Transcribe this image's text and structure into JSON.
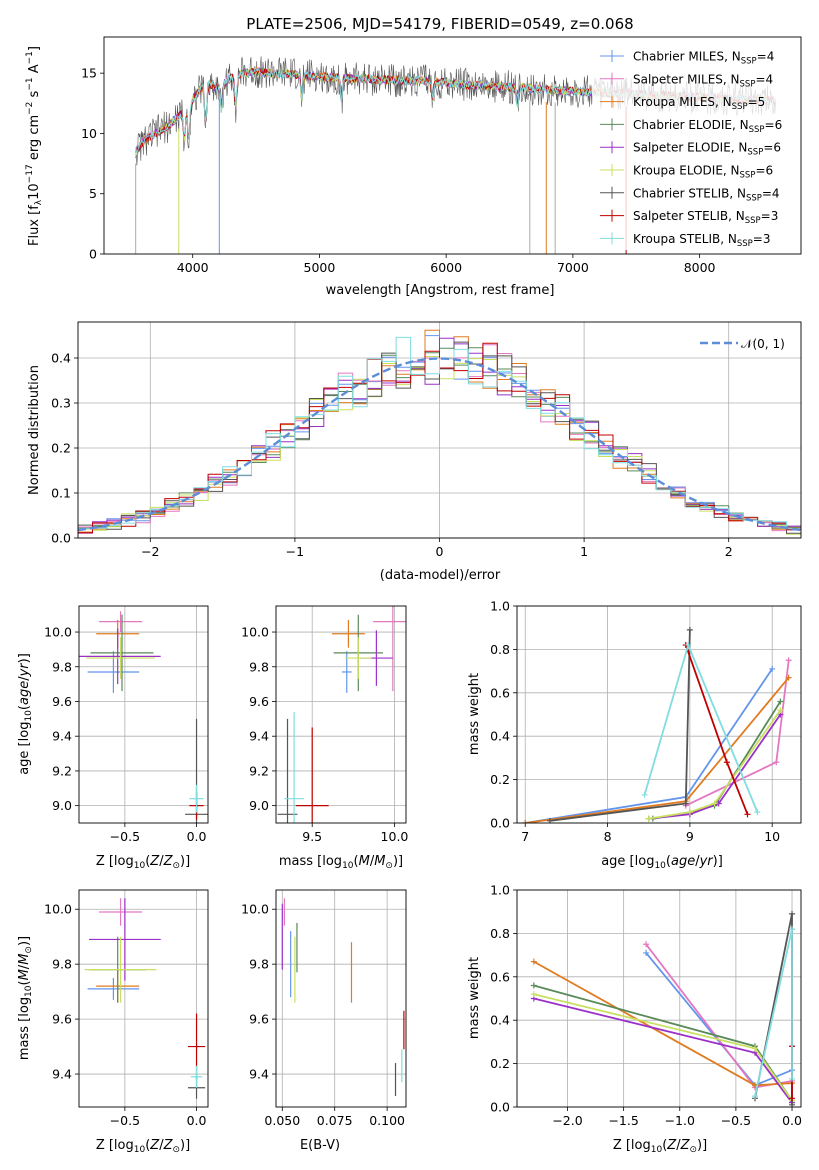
{
  "figure": {
    "title": "PLATE=2506, MJD=54179, FIBERID=0549, z=0.068"
  },
  "series": [
    {
      "name": "Chabrier MILES, N_SSP=4",
      "label_main": "Chabrier MILES, N",
      "label_sub": "SSP",
      "label_tail": "=4",
      "color": "#6495ED"
    },
    {
      "name": "Salpeter MILES, N_SSP=4",
      "label_main": "Salpeter MILES, N",
      "label_sub": "SSP",
      "label_tail": "=4",
      "color": "#E377C2"
    },
    {
      "name": "Kroupa MILES, N_SSP=5",
      "label_main": "Kroupa MILES, N",
      "label_sub": "SSP",
      "label_tail": "=5",
      "color": "#E07B20"
    },
    {
      "name": "Chabrier ELODIE, N_SSP=6",
      "label_main": "Chabrier ELODIE, N",
      "label_sub": "SSP",
      "label_tail": "=6",
      "color": "#5A8A5A"
    },
    {
      "name": "Salpeter ELODIE, N_SSP=6",
      "label_main": "Salpeter ELODIE, N",
      "label_sub": "SSP",
      "label_tail": "=6",
      "color": "#9B30C8"
    },
    {
      "name": "Kroupa ELODIE, N_SSP=6",
      "label_main": "Kroupa ELODIE, N",
      "label_sub": "SSP",
      "label_tail": "=6",
      "color": "#C8E060"
    },
    {
      "name": "Chabrier STELIB, N_SSP=4",
      "label_main": "Chabrier STELIB, N",
      "label_sub": "SSP",
      "label_tail": "=4",
      "color": "#555555"
    },
    {
      "name": "Salpeter STELIB, N_SSP=3",
      "label_main": "Salpeter STELIB, N",
      "label_sub": "SSP",
      "label_tail": "=3",
      "color": "#C00000"
    },
    {
      "name": "Kroupa STELIB, N_SSP=3",
      "label_main": "Kroupa STELIB, N",
      "label_sub": "SSP",
      "label_tail": "=3",
      "color": "#80DDE0"
    }
  ],
  "chart_data": [
    {
      "id": "spectrum",
      "type": "line",
      "xlabel": "wavelength [Angstrom, rest frame]",
      "ylabel": "Flux [f_λ 10^-17 erg cm^-2 s^-1 A^-1]",
      "xlim": [
        3300,
        8800
      ],
      "ylim": [
        0,
        18
      ],
      "xticks": [
        4000,
        5000,
        6000,
        7000,
        8000
      ],
      "yticks": [
        0,
        5,
        10,
        15
      ],
      "spectrum_envelope": {
        "x": [
          3550,
          3600,
          3700,
          3800,
          3900,
          4000,
          4100,
          4200,
          4300,
          4400,
          4500,
          4600,
          4800,
          5000,
          5200,
          5400,
          5600,
          5800,
          6000,
          6200,
          6400,
          6600,
          6800,
          7000,
          7200,
          7400,
          7600,
          7800,
          8000,
          8200,
          8400,
          8600
        ],
        "y": [
          8.5,
          9.2,
          10.0,
          10.6,
          11.5,
          12.8,
          14.2,
          13.8,
          14.6,
          15.0,
          15.2,
          15.0,
          14.9,
          14.7,
          14.6,
          14.5,
          14.4,
          14.4,
          14.2,
          14.0,
          13.9,
          13.8,
          13.6,
          13.5,
          13.4,
          13.3,
          13.2,
          13.1,
          13.0,
          12.9,
          12.8,
          12.7
        ]
      },
      "legend_position": "upper right"
    },
    {
      "id": "residuals",
      "type": "line",
      "xlabel": "(data-model)/error",
      "ylabel": "Normed distribution",
      "xlim": [
        -2.5,
        2.5
      ],
      "ylim": [
        0,
        0.48
      ],
      "xticks": [
        -2,
        -1,
        0,
        1,
        2
      ],
      "yticks": [
        0.0,
        0.1,
        0.2,
        0.3,
        0.4
      ],
      "gaussian_label": "𝒩(0, 1)",
      "gaussian": {
        "mean": 0,
        "sigma": 1
      },
      "legend_position": "upper right"
    },
    {
      "id": "age_vs_Z",
      "type": "scatter",
      "xlabel": "Z [log10(Z/Z⊙)]",
      "ylabel": "age [log10(age/yr)]",
      "xlim": [
        -0.82,
        0.08
      ],
      "ylim": [
        8.9,
        10.15
      ],
      "xticks": [
        -0.5,
        0.0
      ],
      "yticks": [
        9.0,
        9.2,
        9.4,
        9.6,
        9.8,
        10.0
      ],
      "points": [
        {
          "series": 0,
          "x": -0.58,
          "y": 9.77,
          "xerr": 0.18,
          "yerr": 0.12
        },
        {
          "series": 1,
          "x": -0.53,
          "y": 10.06,
          "xerr": 0.15,
          "yerr": 0.06
        },
        {
          "series": 2,
          "x": -0.55,
          "y": 9.99,
          "xerr": 0.15,
          "yerr": 0.08
        },
        {
          "series": 3,
          "x": -0.52,
          "y": 9.88,
          "xerr": 0.22,
          "yerr": 0.22
        },
        {
          "series": 4,
          "x": -0.55,
          "y": 9.86,
          "xerr": 0.3,
          "yerr": 0.16
        },
        {
          "series": 5,
          "x": -0.53,
          "y": 9.85,
          "xerr": 0.24,
          "yerr": 0.12
        },
        {
          "series": 6,
          "x": 0.0,
          "y": 8.95,
          "xerr": 0.08,
          "yerr": 0.55
        },
        {
          "series": 7,
          "x": 0.0,
          "y": 9.0,
          "xerr": 0.05,
          "yerr": 0.08
        },
        {
          "series": 8,
          "x": 0.0,
          "y": 9.04,
          "xerr": 0.05,
          "yerr": 0.08
        }
      ]
    },
    {
      "id": "age_vs_mass",
      "type": "scatter",
      "xlabel": "mass [log10(M/M⊙)]",
      "ylabel": "",
      "xlim": [
        9.28,
        10.07
      ],
      "ylim": [
        8.9,
        10.15
      ],
      "xticks": [
        9.5,
        10.0
      ],
      "yticks": [
        9.0,
        9.2,
        9.4,
        9.6,
        9.8,
        10.0
      ],
      "points": [
        {
          "series": 0,
          "x": 9.71,
          "y": 9.77,
          "xerr": 0.03,
          "yerr": 0.12
        },
        {
          "series": 1,
          "x": 9.99,
          "y": 10.06,
          "xerr": 0.12,
          "yerr": 0.4
        },
        {
          "series": 2,
          "x": 9.72,
          "y": 9.99,
          "xerr": 0.1,
          "yerr": 0.08
        },
        {
          "series": 3,
          "x": 9.78,
          "y": 9.88,
          "xerr": 0.15,
          "yerr": 0.22
        },
        {
          "series": 4,
          "x": 9.89,
          "y": 9.85,
          "xerr": 0.1,
          "yerr": 0.16
        },
        {
          "series": 5,
          "x": 9.78,
          "y": 9.85,
          "xerr": 0.08,
          "yerr": 0.12
        },
        {
          "series": 6,
          "x": 9.35,
          "y": 8.95,
          "xerr": 0.06,
          "yerr": 0.55
        },
        {
          "series": 7,
          "x": 9.5,
          "y": 9.0,
          "xerr": 0.1,
          "yerr": 0.45
        },
        {
          "series": 8,
          "x": 9.39,
          "y": 9.04,
          "xerr": 0.06,
          "yerr": 0.5
        }
      ]
    },
    {
      "id": "massweight_vs_age",
      "type": "line",
      "xlabel": "age [log10(age/yr)]",
      "ylabel": "mass weight",
      "xlim": [
        6.9,
        10.35
      ],
      "ylim": [
        0,
        1.0
      ],
      "xticks": [
        7,
        8,
        9,
        10
      ],
      "yticks": [
        0.0,
        0.2,
        0.4,
        0.6,
        0.8,
        1.0
      ],
      "series_points": [
        {
          "series": 0,
          "x": [
            7.0,
            8.95,
            10.0
          ],
          "y": [
            0.0,
            0.12,
            0.71
          ]
        },
        {
          "series": 1,
          "x": [
            8.95,
            10.05,
            10.2
          ],
          "y": [
            0.08,
            0.28,
            0.75
          ]
        },
        {
          "series": 2,
          "x": [
            7.0,
            8.95,
            10.2
          ],
          "y": [
            0.0,
            0.1,
            0.67
          ]
        },
        {
          "series": 3,
          "x": [
            8.55,
            9.0,
            9.3,
            10.1
          ],
          "y": [
            0.02,
            0.05,
            0.08,
            0.56
          ]
        },
        {
          "series": 4,
          "x": [
            8.5,
            9.0,
            9.35,
            10.1
          ],
          "y": [
            0.02,
            0.04,
            0.09,
            0.5
          ]
        },
        {
          "series": 5,
          "x": [
            8.5,
            9.0,
            9.3,
            10.1
          ],
          "y": [
            0.02,
            0.05,
            0.09,
            0.52
          ]
        },
        {
          "series": 6,
          "x": [
            7.3,
            8.95,
            9.0
          ],
          "y": [
            0.01,
            0.09,
            0.89
          ]
        },
        {
          "series": 7,
          "x": [
            8.95,
            9.45,
            9.7
          ],
          "y": [
            0.82,
            0.28,
            0.04
          ]
        },
        {
          "series": 8,
          "x": [
            8.45,
            8.98,
            9.82
          ],
          "y": [
            0.13,
            0.82,
            0.05
          ]
        }
      ]
    },
    {
      "id": "mass_vs_Z",
      "type": "scatter",
      "xlabel": "Z [log10(Z/Z⊙)]",
      "ylabel": "mass [log10(M/M⊙)]",
      "xlim": [
        -0.82,
        0.08
      ],
      "ylim": [
        9.28,
        10.07
      ],
      "xticks": [
        -0.5,
        0.0
      ],
      "yticks": [
        9.4,
        9.6,
        9.8,
        10.0
      ],
      "points": [
        {
          "series": 0,
          "x": -0.58,
          "y": 9.71,
          "xerr": 0.18,
          "yerr": 0.04
        },
        {
          "series": 1,
          "x": -0.53,
          "y": 9.99,
          "xerr": 0.15,
          "yerr": 0.05
        },
        {
          "series": 2,
          "x": -0.55,
          "y": 9.72,
          "xerr": 0.15,
          "yerr": 0.06
        },
        {
          "series": 3,
          "x": -0.55,
          "y": 9.78,
          "xerr": 0.2,
          "yerr": 0.12
        },
        {
          "series": 4,
          "x": -0.5,
          "y": 9.89,
          "xerr": 0.25,
          "yerr": 0.15
        },
        {
          "series": 5,
          "x": -0.53,
          "y": 9.78,
          "xerr": 0.25,
          "yerr": 0.12
        },
        {
          "series": 6,
          "x": 0.0,
          "y": 9.35,
          "xerr": 0.06,
          "yerr": 0.04
        },
        {
          "series": 7,
          "x": 0.0,
          "y": 9.5,
          "xerr": 0.06,
          "yerr": 0.12
        },
        {
          "series": 8,
          "x": 0.0,
          "y": 9.39,
          "xerr": 0.04,
          "yerr": 0.04
        }
      ]
    },
    {
      "id": "mass_vs_EBV",
      "type": "scatter",
      "xlabel": "E(B-V)",
      "ylabel": "",
      "xlim": [
        0.047,
        0.109
      ],
      "ylim": [
        9.28,
        10.07
      ],
      "xticks": [
        0.05,
        0.075,
        0.1
      ],
      "xtick_labels": [
        "0.050",
        "0.075",
        "0.100"
      ],
      "yticks": [
        9.4,
        9.6,
        9.8,
        10.0
      ],
      "points": [
        {
          "series": 0,
          "x": 0.054,
          "y": 9.8,
          "yerr": 0.12
        },
        {
          "series": 1,
          "x": 0.051,
          "y": 9.99,
          "yerr": 0.05
        },
        {
          "series": 2,
          "x": 0.083,
          "y": 9.77,
          "yerr": 0.11
        },
        {
          "series": 3,
          "x": 0.057,
          "y": 9.86,
          "yerr": 0.09
        },
        {
          "series": 4,
          "x": 0.05,
          "y": 9.9,
          "yerr": 0.12
        },
        {
          "series": 5,
          "x": 0.056,
          "y": 9.78,
          "yerr": 0.12
        },
        {
          "series": 6,
          "x": 0.104,
          "y": 9.38,
          "yerr": 0.06
        },
        {
          "series": 7,
          "x": 0.108,
          "y": 9.56,
          "yerr": 0.07
        },
        {
          "series": 8,
          "x": 0.107,
          "y": 9.43,
          "yerr": 0.06
        }
      ]
    },
    {
      "id": "massweight_vs_Z",
      "type": "line",
      "xlabel": "Z [log10(Z/Z⊙)]",
      "ylabel": "mass weight",
      "xlim": [
        -2.45,
        0.08
      ],
      "ylim": [
        0,
        1.0
      ],
      "xticks": [
        -2.0,
        -1.5,
        -1.0,
        -0.5,
        0.0
      ],
      "yticks": [
        0.0,
        0.2,
        0.4,
        0.6,
        0.8,
        1.0
      ],
      "series_points": [
        {
          "series": 0,
          "x": [
            -1.3,
            -0.33,
            0.0
          ],
          "y": [
            0.71,
            0.1,
            0.17
          ]
        },
        {
          "series": 1,
          "x": [
            -1.3,
            -0.33,
            0.0
          ],
          "y": [
            0.75,
            0.09,
            0.12
          ]
        },
        {
          "series": 2,
          "x": [
            -2.3,
            -0.33,
            0.0
          ],
          "y": [
            0.67,
            0.1,
            0.11
          ]
        },
        {
          "series": 3,
          "x": [
            -2.3,
            -0.33,
            0.0
          ],
          "y": [
            0.56,
            0.28,
            0.03
          ]
        },
        {
          "series": 4,
          "x": [
            -2.3,
            -0.33,
            0.0
          ],
          "y": [
            0.5,
            0.25,
            0.02
          ]
        },
        {
          "series": 5,
          "x": [
            -2.3,
            -0.33,
            0.0
          ],
          "y": [
            0.52,
            0.27,
            0.03
          ]
        },
        {
          "series": 6,
          "x": [
            -0.33,
            0.0,
            0.0
          ],
          "y": [
            0.04,
            0.89,
            0.01
          ]
        },
        {
          "series": 7,
          "x": [
            0.0,
            0.0,
            0.0
          ],
          "y": [
            0.82,
            0.04,
            0.28
          ]
        },
        {
          "series": 8,
          "x": [
            -0.33,
            0.0,
            0.0
          ],
          "y": [
            0.05,
            0.82,
            0.13
          ]
        }
      ]
    }
  ]
}
